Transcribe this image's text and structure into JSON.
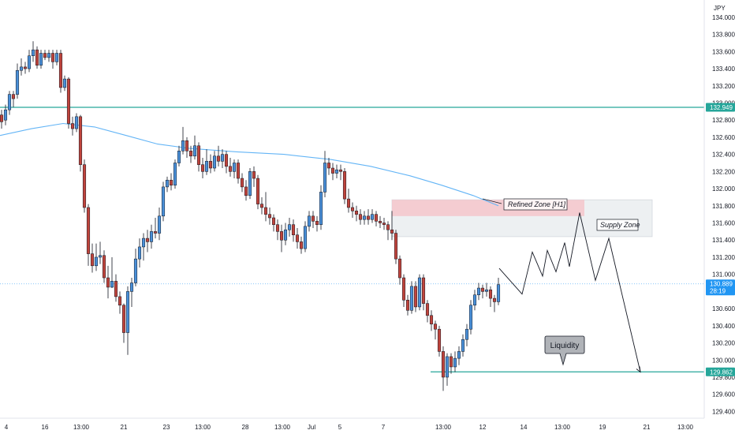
{
  "chart_data": {
    "type": "candlestick",
    "currency": "JPY",
    "y_ticks": [
      129.4,
      129.6,
      129.8,
      130.0,
      130.2,
      130.4,
      130.6,
      130.8,
      131.0,
      131.2,
      131.4,
      131.6,
      131.8,
      132.0,
      132.2,
      132.4,
      132.6,
      132.8,
      133.0,
      133.2,
      133.4,
      133.6,
      133.8,
      134.0
    ],
    "y_tick_labels": [
      "129.400",
      "129.600",
      "129.800",
      "130.000",
      "130.200",
      "130.400",
      "130.600",
      "130.800",
      "131.000",
      "131.200",
      "131.400",
      "131.600",
      "131.800",
      "132.000",
      "132.200",
      "132.400",
      "132.600",
      "132.800",
      "133.000",
      "133.200",
      "133.400",
      "133.600",
      "133.800",
      "134.000"
    ],
    "ylim": [
      129.2,
      134.2
    ],
    "x_labels": [
      "4",
      "16",
      "13:00",
      "21",
      "23",
      "13:00",
      "28",
      "13:00",
      "Jul",
      "5",
      "7",
      "13:00",
      "12",
      "14",
      "13:00",
      "19",
      "21",
      "13:00"
    ],
    "horizontal_levels": [
      {
        "value": 132.949,
        "label": "132.949",
        "color": "#26a69a"
      },
      {
        "value": 129.862,
        "label": "129.862",
        "color": "#26a69a"
      }
    ],
    "current_price": {
      "value": 130.889,
      "label": "130.889",
      "countdown": "28:19",
      "color": "#2196f3"
    },
    "zones": [
      {
        "name": "Refined Zone [H1]",
        "top": 131.87,
        "bottom": 131.68,
        "color": "#f5c6cb"
      },
      {
        "name": "Supply Zone",
        "top": 131.87,
        "bottom": 131.44,
        "color": "#eceff1"
      }
    ],
    "annotations": {
      "refined": "Refined Zone [H1]",
      "supply": "Supply Zone",
      "liquidity": "Liquidity"
    },
    "moving_average": [
      [
        0,
        132.62
      ],
      [
        40,
        132.7
      ],
      [
        80,
        132.76
      ],
      [
        120,
        132.72
      ],
      [
        160,
        132.62
      ],
      [
        200,
        132.52
      ],
      [
        240,
        132.47
      ],
      [
        300,
        132.43
      ],
      [
        360,
        132.4
      ],
      [
        420,
        132.34
      ],
      [
        470,
        132.26
      ],
      [
        520,
        132.15
      ],
      [
        560,
        132.04
      ],
      [
        600,
        131.92
      ],
      [
        632,
        131.8
      ]
    ],
    "projection": [
      [
        633,
        131.07
      ],
      [
        662,
        130.77
      ],
      [
        675,
        131.26
      ],
      [
        688,
        130.98
      ],
      [
        694,
        131.28
      ],
      [
        705,
        131.03
      ],
      [
        716,
        131.37
      ],
      [
        722,
        131.09
      ],
      [
        735,
        131.72
      ],
      [
        755,
        130.93
      ],
      [
        772,
        131.42
      ],
      [
        812,
        129.86
      ]
    ],
    "candles": [
      [
        2,
        132.86,
        132.78,
        132.92,
        132.7
      ],
      [
        7,
        132.8,
        132.92,
        132.98,
        132.74
      ],
      [
        12,
        132.92,
        133.1,
        133.14,
        132.86
      ],
      [
        17,
        133.1,
        133.05,
        133.14,
        132.95
      ],
      [
        22,
        133.1,
        133.38,
        133.46,
        133.05
      ],
      [
        27,
        133.38,
        133.42,
        133.52,
        133.32
      ],
      [
        32,
        133.42,
        133.4,
        133.48,
        133.34
      ],
      [
        37,
        133.4,
        133.55,
        133.62,
        133.36
      ],
      [
        42,
        133.55,
        133.62,
        133.72,
        133.48
      ],
      [
        47,
        133.62,
        133.44,
        133.66,
        133.4
      ],
      [
        52,
        133.44,
        133.58,
        133.62,
        133.4
      ],
      [
        57,
        133.58,
        133.53,
        133.62,
        133.5
      ],
      [
        62,
        133.53,
        133.58,
        133.62,
        133.48
      ],
      [
        67,
        133.58,
        133.48,
        133.62,
        133.4
      ],
      [
        72,
        133.48,
        133.58,
        133.62,
        133.44
      ],
      [
        77,
        133.58,
        133.18,
        133.62,
        133.12
      ],
      [
        82,
        133.18,
        133.28,
        133.32,
        133.14
      ],
      [
        87,
        133.28,
        132.76,
        133.3,
        132.7
      ],
      [
        92,
        132.76,
        132.7,
        132.84,
        132.62
      ],
      [
        97,
        132.7,
        132.84,
        132.88,
        132.66
      ],
      [
        102,
        132.84,
        132.28,
        132.86,
        132.2
      ],
      [
        107,
        132.28,
        131.78,
        132.34,
        131.72
      ],
      [
        112,
        131.78,
        131.24,
        131.82,
        131.1
      ],
      [
        117,
        131.24,
        131.1,
        131.36,
        131.02
      ],
      [
        122,
        131.1,
        131.2,
        131.36,
        131.04
      ],
      [
        127,
        131.2,
        131.22,
        131.38,
        131.12
      ],
      [
        132,
        131.22,
        130.96,
        131.28,
        130.9
      ],
      [
        137,
        130.96,
        130.85,
        131.1,
        130.72
      ],
      [
        142,
        130.85,
        130.92,
        131.2,
        130.84
      ],
      [
        147,
        130.92,
        130.74,
        131.0,
        130.68
      ],
      [
        152,
        130.74,
        130.64,
        130.8,
        130.54
      ],
      [
        157,
        130.64,
        130.32,
        130.66,
        130.2
      ],
      [
        162,
        130.32,
        130.8,
        130.86,
        130.06
      ],
      [
        167,
        130.8,
        130.9,
        130.96,
        130.62
      ],
      [
        172,
        130.9,
        131.18,
        131.3,
        130.86
      ],
      [
        177,
        131.18,
        131.32,
        131.42,
        131.08
      ],
      [
        182,
        131.32,
        131.42,
        131.48,
        131.16
      ],
      [
        187,
        131.42,
        131.38,
        131.52,
        131.26
      ],
      [
        192,
        131.38,
        131.5,
        131.58,
        131.3
      ],
      [
        197,
        131.5,
        131.48,
        131.66,
        131.42
      ],
      [
        202,
        131.48,
        131.68,
        131.78,
        131.4
      ],
      [
        207,
        131.68,
        132.02,
        132.08,
        131.62
      ],
      [
        212,
        132.02,
        132.1,
        132.14,
        131.96
      ],
      [
        217,
        132.1,
        132.04,
        132.18,
        131.98
      ],
      [
        222,
        132.04,
        132.3,
        132.34,
        132.0
      ],
      [
        227,
        132.3,
        132.44,
        132.5,
        132.26
      ],
      [
        232,
        132.44,
        132.56,
        132.72,
        132.4
      ],
      [
        237,
        132.56,
        132.44,
        132.6,
        132.36
      ],
      [
        242,
        132.44,
        132.38,
        132.5,
        132.3
      ],
      [
        247,
        132.38,
        132.5,
        132.62,
        132.34
      ],
      [
        252,
        132.5,
        132.28,
        132.54,
        132.2
      ],
      [
        257,
        132.28,
        132.2,
        132.36,
        132.12
      ],
      [
        262,
        132.2,
        132.32,
        132.46,
        132.16
      ],
      [
        267,
        132.32,
        132.24,
        132.4,
        132.18
      ],
      [
        272,
        132.24,
        132.38,
        132.44,
        132.2
      ],
      [
        277,
        132.38,
        132.32,
        132.5,
        132.26
      ],
      [
        282,
        132.32,
        132.4,
        132.46,
        132.24
      ],
      [
        287,
        132.4,
        132.26,
        132.44,
        132.18
      ],
      [
        292,
        132.26,
        132.2,
        132.36,
        132.14
      ],
      [
        297,
        132.2,
        132.3,
        132.34,
        132.12
      ],
      [
        302,
        132.3,
        132.12,
        132.34,
        132.06
      ],
      [
        307,
        132.12,
        132.02,
        132.18,
        131.96
      ],
      [
        312,
        132.02,
        131.92,
        132.1,
        131.86
      ],
      [
        317,
        131.92,
        132.2,
        132.24,
        131.88
      ],
      [
        322,
        132.2,
        132.12,
        132.26,
        132.02
      ],
      [
        327,
        132.12,
        131.82,
        132.16,
        131.76
      ],
      [
        332,
        131.82,
        131.78,
        131.9,
        131.7
      ],
      [
        337,
        131.78,
        131.7,
        131.96,
        131.62
      ],
      [
        342,
        131.7,
        131.66,
        131.78,
        131.58
      ],
      [
        347,
        131.66,
        131.58,
        131.7,
        131.5
      ],
      [
        352,
        131.58,
        131.5,
        131.64,
        131.4
      ],
      [
        357,
        131.5,
        131.4,
        131.58,
        131.26
      ],
      [
        362,
        131.4,
        131.52,
        131.6,
        131.34
      ],
      [
        367,
        131.52,
        131.58,
        131.66,
        131.44
      ],
      [
        372,
        131.58,
        131.46,
        131.64,
        131.38
      ],
      [
        377,
        131.46,
        131.38,
        131.54,
        131.3
      ],
      [
        382,
        131.38,
        131.3,
        131.44,
        131.24
      ],
      [
        387,
        131.3,
        131.56,
        131.62,
        131.26
      ],
      [
        392,
        131.56,
        131.68,
        131.74,
        131.5
      ],
      [
        397,
        131.68,
        131.62,
        131.74,
        131.54
      ],
      [
        402,
        131.62,
        131.58,
        131.68,
        131.5
      ],
      [
        407,
        131.58,
        131.96,
        132.04,
        131.52
      ],
      [
        412,
        131.96,
        132.3,
        132.44,
        131.9
      ],
      [
        417,
        132.3,
        132.24,
        132.36,
        132.16
      ],
      [
        422,
        132.24,
        132.18,
        132.3,
        132.1
      ],
      [
        427,
        132.18,
        132.22,
        132.28,
        132.12
      ],
      [
        432,
        132.22,
        132.2,
        132.28,
        132.1
      ],
      [
        437,
        132.2,
        131.88,
        132.24,
        131.82
      ],
      [
        442,
        131.88,
        131.78,
        132.0,
        131.72
      ],
      [
        447,
        131.78,
        131.74,
        131.84,
        131.66
      ],
      [
        452,
        131.74,
        131.7,
        131.8,
        131.62
      ],
      [
        457,
        131.7,
        131.64,
        131.76,
        131.58
      ],
      [
        462,
        131.64,
        131.68,
        131.74,
        131.58
      ],
      [
        467,
        131.68,
        131.64,
        131.76,
        131.58
      ],
      [
        472,
        131.64,
        131.7,
        131.76,
        131.6
      ],
      [
        477,
        131.7,
        131.62,
        131.74,
        131.56
      ],
      [
        482,
        131.62,
        131.6,
        131.68,
        131.54
      ],
      [
        487,
        131.6,
        131.58,
        131.66,
        131.52
      ],
      [
        492,
        131.58,
        131.52,
        131.62,
        131.4
      ],
      [
        497,
        131.52,
        131.48,
        131.74,
        131.4
      ],
      [
        502,
        131.48,
        131.18,
        131.52,
        131.12
      ],
      [
        507,
        131.18,
        130.96,
        131.22,
        130.88
      ],
      [
        512,
        130.96,
        130.7,
        131.0,
        130.62
      ],
      [
        517,
        130.7,
        130.58,
        130.76,
        130.52
      ],
      [
        522,
        130.58,
        130.86,
        130.92,
        130.54
      ],
      [
        527,
        130.86,
        130.62,
        130.92,
        130.56
      ],
      [
        532,
        130.62,
        130.96,
        131.0,
        130.58
      ],
      [
        537,
        130.96,
        130.66,
        131.0,
        130.58
      ],
      [
        542,
        130.66,
        130.52,
        130.7,
        130.44
      ],
      [
        547,
        130.52,
        130.42,
        130.58,
        130.34
      ],
      [
        552,
        130.42,
        130.36,
        130.46,
        130.24
      ],
      [
        557,
        130.36,
        130.1,
        130.4,
        130.04
      ],
      [
        562,
        130.1,
        129.8,
        130.16,
        129.64
      ],
      [
        567,
        129.8,
        130.04,
        130.08,
        129.7
      ],
      [
        572,
        130.04,
        129.92,
        130.08,
        129.84
      ],
      [
        577,
        129.92,
        130.02,
        130.1,
        129.86
      ],
      [
        582,
        130.02,
        130.1,
        130.16,
        129.94
      ],
      [
        587,
        130.1,
        130.24,
        130.3,
        130.04
      ],
      [
        592,
        130.24,
        130.36,
        130.42,
        130.16
      ],
      [
        597,
        130.36,
        130.64,
        130.7,
        130.3
      ],
      [
        602,
        130.64,
        130.76,
        130.82,
        130.58
      ],
      [
        607,
        130.76,
        130.84,
        130.9,
        130.7
      ],
      [
        612,
        130.84,
        130.8,
        130.88,
        130.72
      ],
      [
        617,
        130.8,
        130.82,
        130.9,
        130.74
      ],
      [
        622,
        130.82,
        130.72,
        130.86,
        130.62
      ],
      [
        627,
        130.72,
        130.68,
        130.76,
        130.56
      ],
      [
        632,
        130.68,
        130.88,
        130.96,
        130.64
      ]
    ]
  }
}
